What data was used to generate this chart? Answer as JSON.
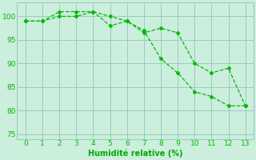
{
  "line1_x": [
    0,
    1,
    2,
    3,
    4,
    5,
    6,
    7,
    8,
    9,
    10,
    11,
    12,
    13
  ],
  "line1_y": [
    99,
    99,
    100,
    100,
    101,
    100,
    99,
    96.5,
    97.5,
    96.5,
    90,
    88,
    89,
    81
  ],
  "line2_x": [
    0,
    1,
    2,
    3,
    4,
    5,
    6,
    7,
    8,
    9,
    10,
    11,
    12,
    13
  ],
  "line2_y": [
    99,
    99,
    101,
    101,
    101,
    98,
    99,
    97,
    91,
    88,
    84,
    83,
    81,
    81
  ],
  "color": "#00bb00",
  "bg_color": "#cceedd",
  "grid_color": "#99ccbb",
  "xlabel": "Humidité relative (%)",
  "xlim": [
    -0.5,
    13.5
  ],
  "ylim": [
    74,
    103
  ],
  "yticks": [
    75,
    80,
    85,
    90,
    95,
    100
  ],
  "xticks": [
    0,
    1,
    2,
    3,
    4,
    5,
    6,
    7,
    8,
    9,
    10,
    11,
    12,
    13
  ],
  "xlabel_color": "#00aa00",
  "xlabel_fontsize": 7,
  "tick_fontsize": 6.5
}
